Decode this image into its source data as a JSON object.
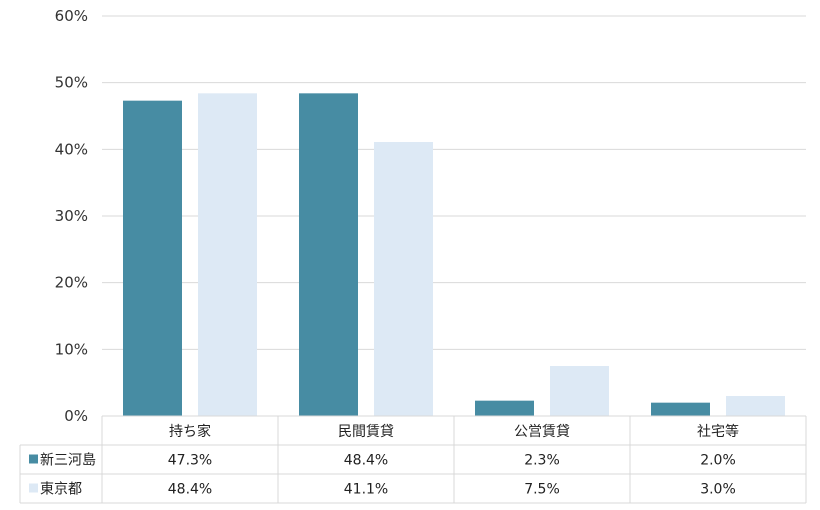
{
  "chart_data": {
    "type": "bar",
    "categories": [
      "持ち家",
      "民間賃貸",
      "公営賃貸",
      "社宅等"
    ],
    "series": [
      {
        "name": "新三河島",
        "color": "#478ca3",
        "values": [
          47.3,
          48.4,
          2.3,
          2.0
        ],
        "labels": [
          "47.3%",
          "48.4%",
          "2.3%",
          "2.0%"
        ]
      },
      {
        "name": "東京都",
        "color": "#dde9f5",
        "values": [
          48.4,
          41.1,
          7.5,
          3.0
        ],
        "labels": [
          "48.4%",
          "41.1%",
          "7.5%",
          "3.0%"
        ]
      }
    ],
    "ylim": [
      0,
      60
    ],
    "yticks": [
      0,
      10,
      20,
      30,
      40,
      50,
      60
    ],
    "ytick_labels": [
      "0%",
      "10%",
      "20%",
      "30%",
      "40%",
      "50%",
      "60%"
    ],
    "grid": true,
    "legend_placement": "data-table"
  }
}
